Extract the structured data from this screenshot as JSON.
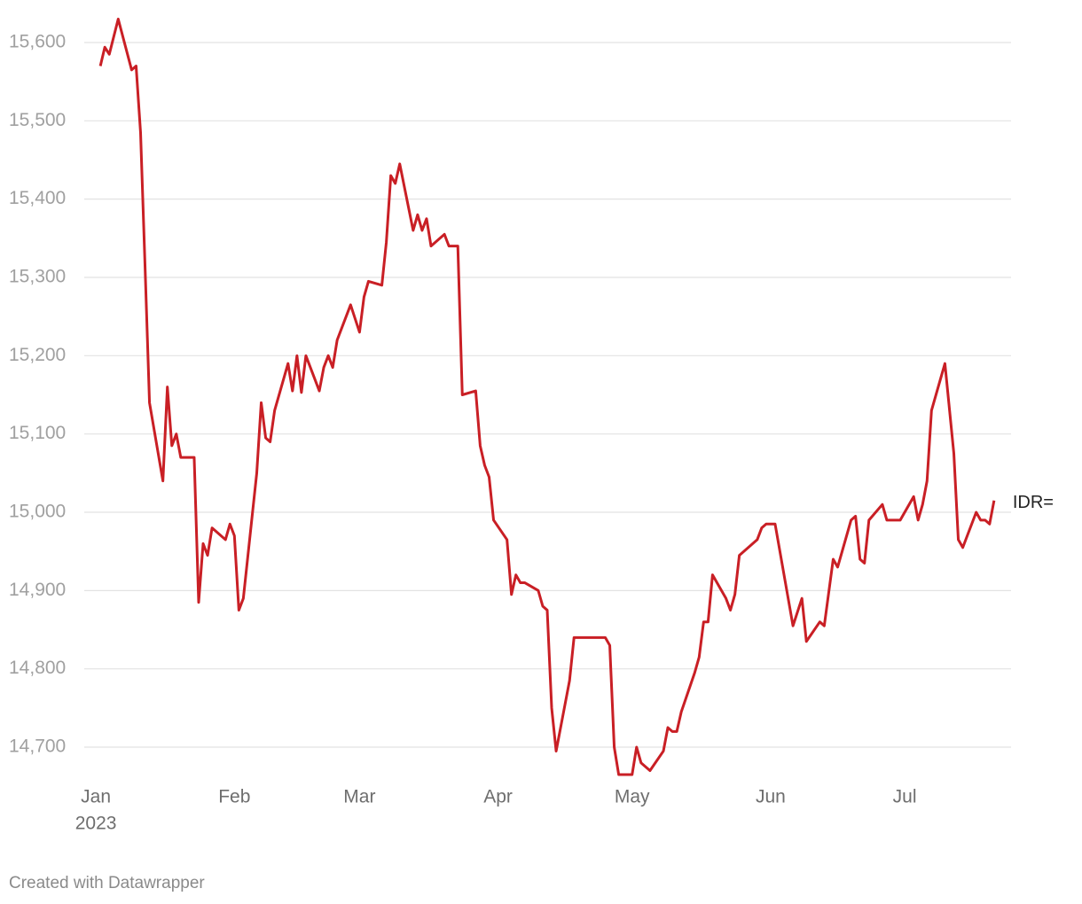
{
  "chart_data": {
    "type": "line",
    "footer": "Created with Datawrapper",
    "xlim": [
      -1.6,
      205.8
    ],
    "xticks": [
      {
        "value": 1,
        "label": "Jan",
        "sublabel": "2023"
      },
      {
        "value": 32,
        "label": "Feb"
      },
      {
        "value": 60,
        "label": "Mar"
      },
      {
        "value": 91,
        "label": "Apr"
      },
      {
        "value": 121,
        "label": "May"
      },
      {
        "value": 152,
        "label": "Jun"
      },
      {
        "value": 182,
        "label": "Jul"
      }
    ],
    "ylim": [
      14650,
      15650
    ],
    "yticks": [
      {
        "value": 14700,
        "label": "14,700"
      },
      {
        "value": 14800,
        "label": "14,800"
      },
      {
        "value": 14900,
        "label": "14,900"
      },
      {
        "value": 15000,
        "label": "15,000"
      },
      {
        "value": 15100,
        "label": "15,100"
      },
      {
        "value": 15200,
        "label": "15,200"
      },
      {
        "value": 15300,
        "label": "15,300"
      },
      {
        "value": 15400,
        "label": "15,400"
      },
      {
        "value": 15500,
        "label": "15,500"
      },
      {
        "value": 15600,
        "label": "15,600"
      }
    ],
    "grid": true,
    "x": [
      2,
      3,
      4,
      6,
      9,
      10,
      11,
      12,
      13,
      16,
      17,
      18,
      19,
      20,
      23,
      24,
      25,
      26,
      27,
      30,
      31,
      32,
      33,
      34,
      37,
      38,
      39,
      40,
      41,
      44,
      45,
      46,
      47,
      48,
      51,
      52,
      53,
      54,
      55,
      58,
      60,
      61,
      62,
      65,
      66,
      67,
      68,
      69,
      72,
      73,
      74,
      75,
      76,
      79,
      80,
      82,
      83,
      86,
      87,
      88,
      89,
      90,
      93,
      94,
      95,
      96,
      97,
      100,
      101,
      102,
      103,
      104,
      107,
      108,
      115,
      116,
      117,
      118,
      121,
      122,
      123,
      125,
      128,
      129,
      130,
      131,
      132,
      135,
      136,
      137,
      138,
      139,
      142,
      143,
      144,
      145,
      149,
      150,
      151,
      153,
      157,
      159,
      160,
      163,
      164,
      166,
      167,
      168,
      170,
      171,
      172,
      173,
      174,
      177,
      178,
      181,
      184,
      185,
      186,
      187,
      188,
      191,
      193,
      194,
      195,
      198,
      199,
      200,
      201,
      202
    ],
    "series": [
      {
        "name": "IDR=",
        "color": "#c91f25",
        "values": [
          15570,
          15594,
          15585,
          15630,
          15565,
          15570,
          15485,
          15315,
          15140,
          15040,
          15160,
          15085,
          15100,
          15070,
          15070,
          14885,
          14960,
          14945,
          14980,
          14965,
          14985,
          14970,
          14875,
          14890,
          15050,
          15140,
          15095,
          15090,
          15130,
          15190,
          15155,
          15200,
          15153,
          15200,
          15155,
          15185,
          15200,
          15185,
          15220,
          15265,
          15230,
          15275,
          15295,
          15290,
          15345,
          15430,
          15420,
          15445,
          15360,
          15380,
          15360,
          15375,
          15340,
          15355,
          15340,
          15340,
          15150,
          15155,
          15085,
          15060,
          15045,
          14990,
          14965,
          14895,
          14920,
          14910,
          14910,
          14900,
          14880,
          14875,
          14750,
          14695,
          14785,
          14840,
          14840,
          14830,
          14700,
          14665,
          14665,
          14700,
          14680,
          14670,
          14695,
          14725,
          14720,
          14720,
          14745,
          14795,
          14815,
          14860,
          14860,
          14920,
          14890,
          14875,
          14895,
          14945,
          14965,
          14980,
          14985,
          14985,
          14855,
          14890,
          14835,
          14860,
          14855,
          14940,
          14930,
          14950,
          14990,
          14995,
          14940,
          14935,
          14990,
          15010,
          14990,
          14990,
          15020,
          14990,
          15010,
          15040,
          15130,
          15190,
          15075,
          14965,
          14955,
          15000,
          14990,
          14990,
          14985,
          15015
        ]
      }
    ]
  }
}
